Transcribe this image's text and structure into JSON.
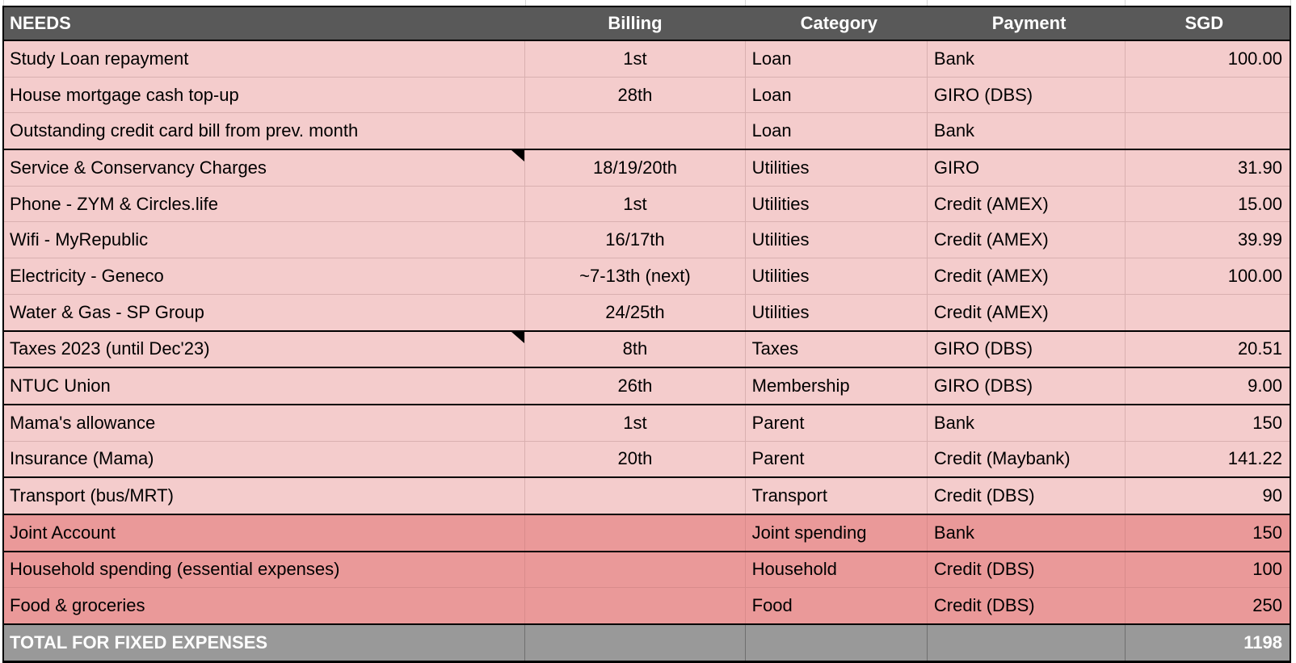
{
  "app": {
    "description": "spreadsheet fixed-expenses budget table"
  },
  "columns": {
    "needs": "NEEDS",
    "billing": "Billing",
    "category": "Category",
    "payment": "Payment",
    "sgd": "SGD"
  },
  "rows": [
    {
      "name": "Study Loan repayment",
      "billing": "1st",
      "category": "Loan",
      "payment": "Bank",
      "sgd": "100.00",
      "tone": "light",
      "note": false,
      "divider": "thin"
    },
    {
      "name": "House mortgage cash top-up",
      "billing": "28th",
      "category": "Loan",
      "payment": "GIRO (DBS)",
      "sgd": "",
      "tone": "light",
      "note": false,
      "divider": "thin"
    },
    {
      "name": "Outstanding credit card bill from prev. month",
      "billing": "",
      "category": "Loan",
      "payment": "Bank",
      "sgd": "",
      "tone": "light",
      "note": false,
      "divider": "thick"
    },
    {
      "name": "Service & Conservancy Charges",
      "billing": "18/19/20th",
      "category": "Utilities",
      "payment": "GIRO",
      "sgd": "31.90",
      "tone": "light",
      "note": true,
      "divider": "thin"
    },
    {
      "name": "Phone - ZYM & Circles.life",
      "billing": "1st",
      "category": "Utilities",
      "payment": "Credit (AMEX)",
      "sgd": "15.00",
      "tone": "light",
      "note": false,
      "divider": "thin"
    },
    {
      "name": "Wifi - MyRepublic",
      "billing": "16/17th",
      "category": "Utilities",
      "payment": "Credit (AMEX)",
      "sgd": "39.99",
      "tone": "light",
      "note": false,
      "divider": "thin"
    },
    {
      "name": "Electricity - Geneco",
      "billing": "~7-13th (next)",
      "category": "Utilities",
      "payment": "Credit (AMEX)",
      "sgd": "100.00",
      "tone": "light",
      "note": false,
      "divider": "thin"
    },
    {
      "name": "Water & Gas - SP Group",
      "billing": "24/25th",
      "category": "Utilities",
      "payment": "Credit (AMEX)",
      "sgd": "",
      "tone": "light",
      "note": false,
      "divider": "thick"
    },
    {
      "name": "Taxes 2023 (until Dec'23)",
      "billing": "8th",
      "category": "Taxes",
      "payment": "GIRO (DBS)",
      "sgd": "20.51",
      "tone": "light",
      "note": true,
      "divider": "thick"
    },
    {
      "name": "NTUC Union",
      "billing": "26th",
      "category": "Membership",
      "payment": "GIRO (DBS)",
      "sgd": "9.00",
      "tone": "light",
      "note": false,
      "divider": "thick"
    },
    {
      "name": "Mama's allowance",
      "billing": "1st",
      "category": "Parent",
      "payment": "Bank",
      "sgd": "150",
      "tone": "light",
      "note": false,
      "divider": "thin"
    },
    {
      "name": "Insurance (Mama)",
      "billing": "20th",
      "category": "Parent",
      "payment": "Credit (Maybank)",
      "sgd": "141.22",
      "tone": "light",
      "note": false,
      "divider": "thick"
    },
    {
      "name": "Transport (bus/MRT)",
      "billing": "",
      "category": "Transport",
      "payment": "Credit (DBS)",
      "sgd": "90",
      "tone": "light",
      "note": false,
      "divider": "thick"
    },
    {
      "name": "Joint Account",
      "billing": "",
      "category": "Joint spending",
      "payment": "Bank",
      "sgd": "150",
      "tone": "dark",
      "note": false,
      "divider": "thick"
    },
    {
      "name": "Household spending (essential expenses)",
      "billing": "",
      "category": "Household",
      "payment": "Credit (DBS)",
      "sgd": "100",
      "tone": "dark",
      "note": false,
      "divider": "thin"
    },
    {
      "name": "Food & groceries",
      "billing": "",
      "category": "Food",
      "payment": "Credit (DBS)",
      "sgd": "250",
      "tone": "dark",
      "note": false,
      "divider": "thick"
    }
  ],
  "total": {
    "label": "TOTAL FOR FIXED EXPENSES",
    "value": "1198"
  },
  "icons": {
    "note_indicator": "black corner triangle note marker"
  },
  "colors": {
    "header_bg": "#595959",
    "header_text": "#ffffff",
    "row_light": "#f4cccc",
    "row_dark": "#ea9999",
    "total_bg": "#999999",
    "cell_text": "#000000"
  }
}
